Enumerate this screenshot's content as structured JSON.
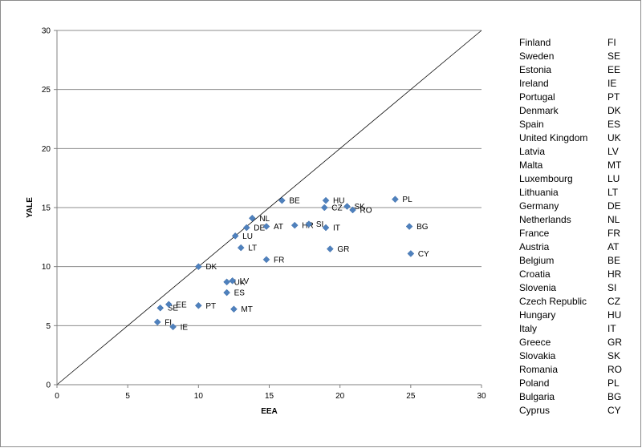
{
  "chart_data": {
    "type": "scatter",
    "title": "",
    "xlabel": "EEA",
    "ylabel": "YALE",
    "xlim": [
      0,
      30
    ],
    "ylim": [
      0,
      30
    ],
    "xticks": [
      "0",
      "5",
      "10",
      "15",
      "20",
      "25",
      "30"
    ],
    "yticks": [
      "0",
      "5",
      "10",
      "15",
      "20",
      "25",
      "30"
    ],
    "grid": "horizontal",
    "reference_line": "y = x",
    "marker_color": "#4F81BD",
    "points": [
      {
        "label": "FI",
        "x": 7.1,
        "y": 5.3
      },
      {
        "label": "SE",
        "x": 7.3,
        "y": 6.5
      },
      {
        "label": "EE",
        "x": 7.9,
        "y": 6.8
      },
      {
        "label": "IE",
        "x": 8.2,
        "y": 4.9
      },
      {
        "label": "PT",
        "x": 10.0,
        "y": 6.7
      },
      {
        "label": "DK",
        "x": 10.0,
        "y": 10.0
      },
      {
        "label": "ES",
        "x": 12.0,
        "y": 7.8
      },
      {
        "label": "UK",
        "x": 12.0,
        "y": 8.7
      },
      {
        "label": "LV",
        "x": 12.4,
        "y": 8.8
      },
      {
        "label": "MT",
        "x": 12.5,
        "y": 6.4
      },
      {
        "label": "LU",
        "x": 12.6,
        "y": 12.6
      },
      {
        "label": "LT",
        "x": 13.0,
        "y": 11.6
      },
      {
        "label": "DE",
        "x": 13.4,
        "y": 13.3
      },
      {
        "label": "NL",
        "x": 13.8,
        "y": 14.1
      },
      {
        "label": "AT",
        "x": 14.8,
        "y": 13.4
      },
      {
        "label": "FR",
        "x": 14.8,
        "y": 10.6
      },
      {
        "label": "BE",
        "x": 15.9,
        "y": 15.6
      },
      {
        "label": "HR",
        "x": 16.8,
        "y": 13.5
      },
      {
        "label": "SI",
        "x": 17.8,
        "y": 13.6
      },
      {
        "label": "CZ",
        "x": 18.9,
        "y": 15.0
      },
      {
        "label": "HU",
        "x": 19.0,
        "y": 15.6
      },
      {
        "label": "IT",
        "x": 19.0,
        "y": 13.3
      },
      {
        "label": "GR",
        "x": 19.3,
        "y": 11.5
      },
      {
        "label": "SK",
        "x": 20.5,
        "y": 15.1
      },
      {
        "label": "RO",
        "x": 20.9,
        "y": 14.8
      },
      {
        "label": "PL",
        "x": 23.9,
        "y": 15.7
      },
      {
        "label": "BG",
        "x": 24.9,
        "y": 13.4
      },
      {
        "label": "CY",
        "x": 25.0,
        "y": 11.1
      }
    ]
  },
  "legend": [
    {
      "name": "Finland",
      "code": "FI"
    },
    {
      "name": "Sweden",
      "code": "SE"
    },
    {
      "name": "Estonia",
      "code": "EE"
    },
    {
      "name": "Ireland",
      "code": "IE"
    },
    {
      "name": "Portugal",
      "code": "PT"
    },
    {
      "name": "Denmark",
      "code": "DK"
    },
    {
      "name": "Spain",
      "code": "ES"
    },
    {
      "name": "United Kingdom",
      "code": "UK"
    },
    {
      "name": "Latvia",
      "code": "LV"
    },
    {
      "name": "Malta",
      "code": "MT"
    },
    {
      "name": "Luxembourg",
      "code": "LU"
    },
    {
      "name": "Lithuania",
      "code": "LT"
    },
    {
      "name": "Germany",
      "code": "DE"
    },
    {
      "name": "Netherlands",
      "code": "NL"
    },
    {
      "name": "France",
      "code": "FR"
    },
    {
      "name": "Austria",
      "code": "AT"
    },
    {
      "name": "Belgium",
      "code": "BE"
    },
    {
      "name": "Croatia",
      "code": "HR"
    },
    {
      "name": "Slovenia",
      "code": "SI"
    },
    {
      "name": "Czech Republic",
      "code": "CZ"
    },
    {
      "name": "Hungary",
      "code": "HU"
    },
    {
      "name": "Italy",
      "code": "IT"
    },
    {
      "name": "Greece",
      "code": "GR"
    },
    {
      "name": "Slovakia",
      "code": "SK"
    },
    {
      "name": "Romania",
      "code": "RO"
    },
    {
      "name": "Poland",
      "code": "PL"
    },
    {
      "name": "Bulgaria",
      "code": "BG"
    },
    {
      "name": "Cyprus",
      "code": "CY"
    }
  ]
}
